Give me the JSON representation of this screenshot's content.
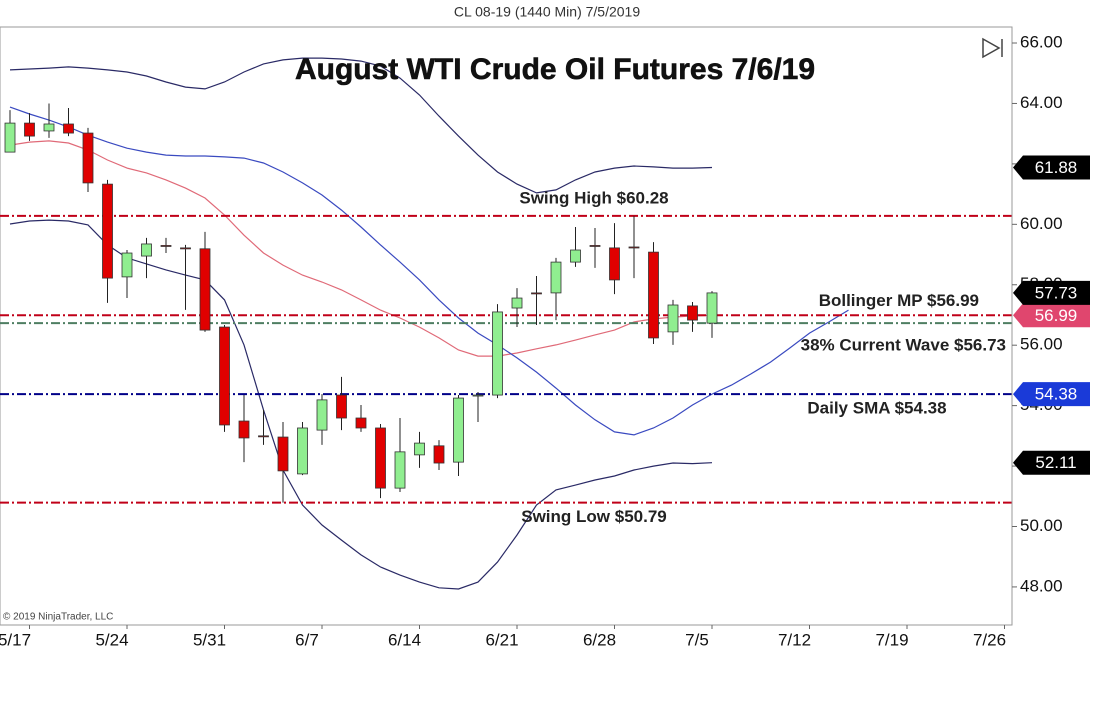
{
  "chart_data": {
    "type": "candlestick",
    "header": "CL 08-19 (1440 Min)  7/5/2019",
    "title": "August WTI Crude Oil Futures 7/6/19",
    "copyright": "© 2019 NinjaTrader, LLC",
    "categories": [
      null,
      "5/17",
      null,
      null,
      null,
      null,
      "5/24",
      null,
      null,
      null,
      null,
      "5/31",
      null,
      null,
      null,
      null,
      "6/7",
      null,
      null,
      null,
      null,
      "6/14",
      null,
      null,
      null,
      null,
      "6/21",
      null,
      null,
      null,
      null,
      "6/28",
      null,
      null,
      null,
      null,
      "7/5",
      null,
      null,
      null,
      null,
      "7/12",
      null,
      null,
      null,
      null,
      "7/19",
      null,
      null,
      null,
      null,
      "7/26"
    ],
    "ylim": [
      46.74,
      66.53
    ],
    "yticks": [
      {
        "value": 48,
        "label": "48.00"
      },
      {
        "value": 50,
        "label": "50.00"
      },
      {
        "value": 52,
        "label": "52.00"
      },
      {
        "value": 54,
        "label": "54.00"
      },
      {
        "value": 56,
        "label": "56.00"
      },
      {
        "value": 58,
        "label": "58.00"
      },
      {
        "value": 60,
        "label": "60.00"
      },
      {
        "value": 62,
        "label": "62.00"
      },
      {
        "value": 64,
        "label": "64.00"
      },
      {
        "value": 66,
        "label": "66.00"
      }
    ],
    "candles": {
      "up_color": "#90ee90",
      "down_color": "#e00000",
      "marker_color": "#000000",
      "open": [
        62.39,
        63.35,
        63.09,
        63.32,
        63.02,
        61.33,
        58.26,
        58.95,
        59.3,
        59.22,
        59.19,
        56.6,
        53.49,
        53.0,
        52.96,
        51.74,
        53.19,
        54.35,
        53.59,
        53.26,
        51.27,
        52.37,
        52.67,
        52.13,
        54.32,
        54.35,
        57.23,
        57.73,
        57.73,
        58.75,
        59.3,
        59.22,
        59.25,
        59.08,
        56.44,
        57.3,
        56.73,
        null,
        null,
        null,
        null,
        null,
        null,
        null,
        null,
        null,
        null,
        null,
        null,
        null,
        null,
        null
      ],
      "high": [
        63.78,
        63.68,
        64.0,
        63.85,
        63.19,
        61.47,
        59.15,
        59.55,
        59.55,
        59.32,
        59.75,
        56.67,
        54.35,
        53.86,
        53.46,
        53.46,
        54.38,
        54.95,
        54.02,
        53.39,
        53.59,
        53.13,
        52.86,
        54.35,
        54.45,
        57.36,
        57.89,
        58.29,
        58.89,
        59.91,
        59.88,
        60.04,
        60.28,
        59.41,
        57.5,
        57.43,
        57.79,
        null,
        null,
        null,
        null,
        null,
        null,
        null,
        null,
        null,
        null,
        null,
        null,
        null,
        null,
        null
      ],
      "low": [
        62.39,
        62.76,
        62.86,
        62.92,
        61.07,
        57.4,
        57.56,
        58.22,
        59.05,
        57.17,
        56.44,
        53.13,
        52.13,
        52.7,
        50.79,
        51.7,
        52.7,
        53.19,
        53.13,
        50.94,
        51.14,
        51.94,
        51.87,
        51.67,
        53.46,
        54.25,
        56.6,
        56.67,
        56.83,
        58.59,
        58.56,
        57.69,
        58.22,
        56.04,
        56.01,
        56.44,
        56.24,
        null,
        null,
        null,
        null,
        null,
        null,
        null,
        null,
        null,
        null,
        null,
        null,
        null,
        null,
        null
      ],
      "close": [
        63.35,
        62.92,
        63.32,
        63.02,
        61.37,
        58.22,
        59.05,
        59.35,
        59.28,
        59.2,
        56.5,
        53.36,
        52.93,
        52.97,
        51.84,
        53.26,
        54.19,
        53.59,
        53.26,
        51.27,
        52.47,
        52.76,
        52.1,
        54.25,
        54.35,
        57.1,
        57.56,
        57.7,
        58.75,
        59.15,
        59.28,
        58.16,
        59.22,
        56.24,
        57.33,
        56.83,
        57.73,
        null,
        null,
        null,
        null,
        null,
        null,
        null,
        null,
        null,
        null,
        null,
        null,
        null,
        null,
        null
      ]
    },
    "series": [
      {
        "color": "#2a2a66",
        "marker_color": "#000000",
        "values": [
          65.11,
          65.14,
          65.17,
          65.21,
          65.17,
          65.11,
          65.04,
          64.91,
          64.71,
          64.54,
          64.48,
          64.71,
          65.04,
          65.31,
          65.44,
          65.5,
          65.5,
          65.47,
          65.4,
          65.24,
          64.84,
          64.28,
          63.58,
          62.92,
          62.29,
          61.73,
          61.33,
          61.04,
          61.14,
          61.47,
          61.73,
          61.86,
          61.93,
          61.9,
          61.86,
          61.86,
          61.88,
          null,
          null,
          null,
          null,
          null,
          null,
          null,
          null,
          null,
          null,
          null,
          null,
          null,
          null,
          null
        ]
      },
      {
        "color": "#e06a78",
        "marker_color": "#e0466e",
        "values": [
          62.62,
          62.72,
          62.76,
          62.69,
          62.46,
          62.13,
          61.86,
          61.7,
          61.47,
          61.2,
          60.87,
          60.31,
          59.64,
          59.05,
          58.65,
          58.32,
          58.09,
          57.83,
          57.5,
          57.16,
          56.9,
          56.6,
          56.24,
          55.84,
          55.64,
          55.64,
          55.74,
          55.88,
          56.01,
          56.17,
          56.34,
          56.5,
          56.77,
          56.87,
          56.93,
          56.97,
          56.99,
          null,
          null,
          null,
          null,
          null,
          null,
          null,
          null,
          null,
          null,
          null,
          null,
          null,
          null,
          null
        ]
      },
      {
        "color": "#2a2a66",
        "marker_color": "#000000",
        "values": [
          60.01,
          60.11,
          60.14,
          60.11,
          59.98,
          59.32,
          58.89,
          58.69,
          58.49,
          58.32,
          58.16,
          57.5,
          56.01,
          53.86,
          51.87,
          50.71,
          50.05,
          49.55,
          49.06,
          48.66,
          48.39,
          48.16,
          47.97,
          47.93,
          48.16,
          48.82,
          49.72,
          50.71,
          51.21,
          51.37,
          51.54,
          51.67,
          51.87,
          52.0,
          52.1,
          52.08,
          52.11,
          null,
          null,
          null,
          null,
          null,
          null,
          null,
          null,
          null,
          null,
          null,
          null,
          null,
          null,
          null
        ]
      },
      {
        "color": "#3a4ac0",
        "marker_color": "#1a3ad8",
        "values": [
          63.88,
          63.65,
          63.45,
          63.22,
          62.95,
          62.72,
          62.52,
          62.39,
          62.29,
          62.26,
          62.26,
          62.23,
          62.19,
          62.03,
          61.73,
          61.37,
          60.97,
          60.47,
          59.91,
          59.32,
          58.75,
          58.16,
          57.5,
          56.9,
          56.4,
          56.01,
          55.58,
          55.11,
          54.58,
          54.02,
          53.53,
          53.13,
          53.03,
          53.26,
          53.59,
          54.02,
          54.38,
          54.68,
          55.05,
          55.44,
          55.91,
          56.4,
          56.77,
          57.16,
          null,
          null,
          null,
          null,
          null,
          null,
          null,
          null
        ]
      }
    ],
    "levels": [
      {
        "label": "Swing High $60.28",
        "value": 60.28,
        "color": "#c00018"
      },
      {
        "label": "Bollinger MP $56.99",
        "value": 56.99,
        "color": "#c00018"
      },
      {
        "label": "38% Current Wave $56.73",
        "value": 56.73,
        "color": "#4e7e62"
      },
      {
        "label": "Daily SMA $54.38",
        "value": 54.38,
        "color": "#000088"
      },
      {
        "label": "Swing Low $50.79",
        "value": 50.79,
        "color": "#c00018"
      }
    ]
  }
}
